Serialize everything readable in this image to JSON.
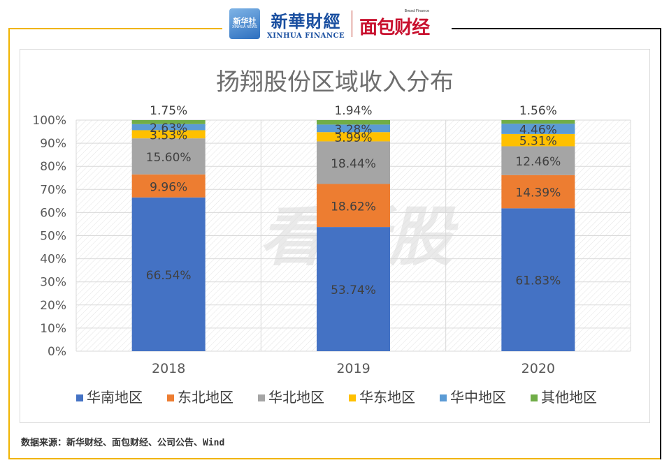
{
  "header": {
    "xinhua_badge_cn": "新华社",
    "xinhua_badge_en": "XINHUA NEWS",
    "xinhua_finance_cn": "新華財經",
    "xinhua_finance_en": "XINHUA FINANCE",
    "bread_finance_en": "Bread Finance",
    "bread_finance_cn": "面包财经"
  },
  "watermark": "看新股",
  "source": "数据来源：新华财经、面包财经、公司公告、Wind",
  "colors": {
    "frame_accent": "#f0b400",
    "series": [
      "#4472c4",
      "#ed7d31",
      "#a5a5a5",
      "#ffc000",
      "#5b9bd5",
      "#70ad47"
    ]
  },
  "chart_data": {
    "type": "bar",
    "stacked": true,
    "title": "扬翔股份区域收入分布",
    "categories": [
      "2018",
      "2019",
      "2020"
    ],
    "series": [
      {
        "name": "华南地区",
        "values": [
          66.54,
          53.74,
          61.83
        ],
        "labels": [
          "66.54%",
          "53.74%",
          "61.83%"
        ]
      },
      {
        "name": "东北地区",
        "values": [
          9.96,
          18.62,
          14.39
        ],
        "labels": [
          "9.96%",
          "18.62%",
          "14.39%"
        ]
      },
      {
        "name": "华北地区",
        "values": [
          15.6,
          18.44,
          12.46
        ],
        "labels": [
          "15.60%",
          "18.44%",
          "12.46%"
        ]
      },
      {
        "name": "华东地区",
        "values": [
          3.53,
          3.99,
          5.31
        ],
        "labels": [
          "3.53%",
          "3.99%",
          "5.31%"
        ]
      },
      {
        "name": "华中地区",
        "values": [
          2.63,
          3.28,
          4.46
        ],
        "labels": [
          "2.63%",
          "3.28%",
          "4.46%"
        ]
      },
      {
        "name": "其他地区",
        "values": [
          1.75,
          1.94,
          1.56
        ],
        "labels": [
          "1.75%",
          "1.94%",
          "1.56%"
        ]
      }
    ],
    "yticks": [
      "0%",
      "10%",
      "20%",
      "30%",
      "40%",
      "50%",
      "60%",
      "70%",
      "80%",
      "90%",
      "100%"
    ],
    "ylim": [
      0,
      100
    ],
    "grid": true,
    "legend": "bottom"
  }
}
